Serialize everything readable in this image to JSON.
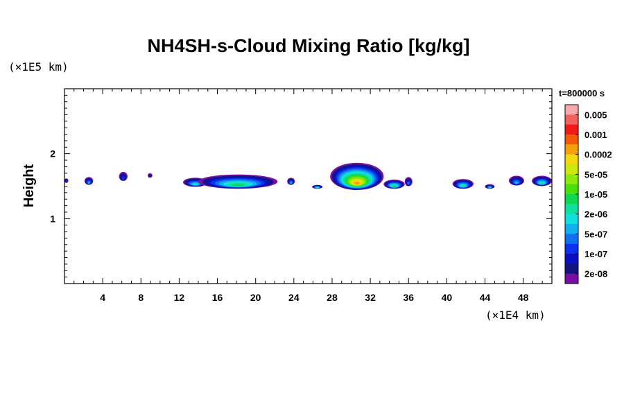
{
  "chart_data": {
    "type": "heatmap",
    "title": "NH4SH-s-Cloud Mixing Ratio [kg/kg]",
    "ylabel": "Height",
    "xlabel": "",
    "x_unit_label": "(×1E4 km)",
    "y_unit_label": "(×1E5 km)",
    "xlim": [
      0,
      51
    ],
    "ylim": [
      0,
      3
    ],
    "x_ticks": [
      4,
      8,
      12,
      16,
      20,
      24,
      28,
      32,
      36,
      40,
      44,
      48
    ],
    "y_ticks": [
      1,
      2
    ],
    "time_label": "t=800000 s",
    "colorbar": {
      "labels": [
        "0.005",
        "0.001",
        "0.0002",
        "5e-05",
        "1e-05",
        "2e-06",
        "5e-07",
        "1e-07",
        "2e-08"
      ],
      "colors_top_to_bottom": [
        "#f7a8a8",
        "#f46060",
        "#f21818",
        "#f45a0a",
        "#f5a10d",
        "#f3d80e",
        "#cde80e",
        "#8ee80c",
        "#4ae00c",
        "#10d850",
        "#0fe0a0",
        "#10e0e0",
        "#10b0f0",
        "#1070f0",
        "#0a30f0",
        "#0a10c0",
        "#141480",
        "#7810a8"
      ]
    },
    "cloud_blobs": [
      {
        "x0": 0,
        "x1": 0.4,
        "base": 1.55,
        "top": 1.62,
        "level": 3
      },
      {
        "x0": 2.1,
        "x1": 3.0,
        "base": 1.52,
        "top": 1.64,
        "level": 5
      },
      {
        "x0": 5.7,
        "x1": 6.6,
        "base": 1.58,
        "top": 1.72,
        "level": 3
      },
      {
        "x0": 8.7,
        "x1": 9.2,
        "base": 1.63,
        "top": 1.7,
        "level": 1
      },
      {
        "x0": 12.4,
        "x1": 15.0,
        "base": 1.49,
        "top": 1.63,
        "level": 6
      },
      {
        "x0": 14.0,
        "x1": 22.3,
        "base": 1.46,
        "top": 1.68,
        "level": 8
      },
      {
        "x0": 23.3,
        "x1": 24.1,
        "base": 1.52,
        "top": 1.63,
        "level": 5
      },
      {
        "x0": 25.9,
        "x1": 27.0,
        "base": 1.46,
        "top": 1.52,
        "level": 7
      },
      {
        "x0": 27.8,
        "x1": 33.4,
        "base": 1.44,
        "top": 1.86,
        "level": 13
      },
      {
        "x0": 33.4,
        "x1": 35.6,
        "base": 1.46,
        "top": 1.6,
        "level": 8
      },
      {
        "x0": 35.6,
        "x1": 36.4,
        "base": 1.5,
        "top": 1.64,
        "level": 4
      },
      {
        "x0": 40.6,
        "x1": 42.8,
        "base": 1.46,
        "top": 1.61,
        "level": 7
      },
      {
        "x0": 44.0,
        "x1": 45.0,
        "base": 1.46,
        "top": 1.53,
        "level": 6
      },
      {
        "x0": 46.5,
        "x1": 48.1,
        "base": 1.51,
        "top": 1.66,
        "level": 5
      },
      {
        "x0": 48.9,
        "x1": 51.0,
        "base": 1.5,
        "top": 1.66,
        "level": 7
      }
    ]
  }
}
